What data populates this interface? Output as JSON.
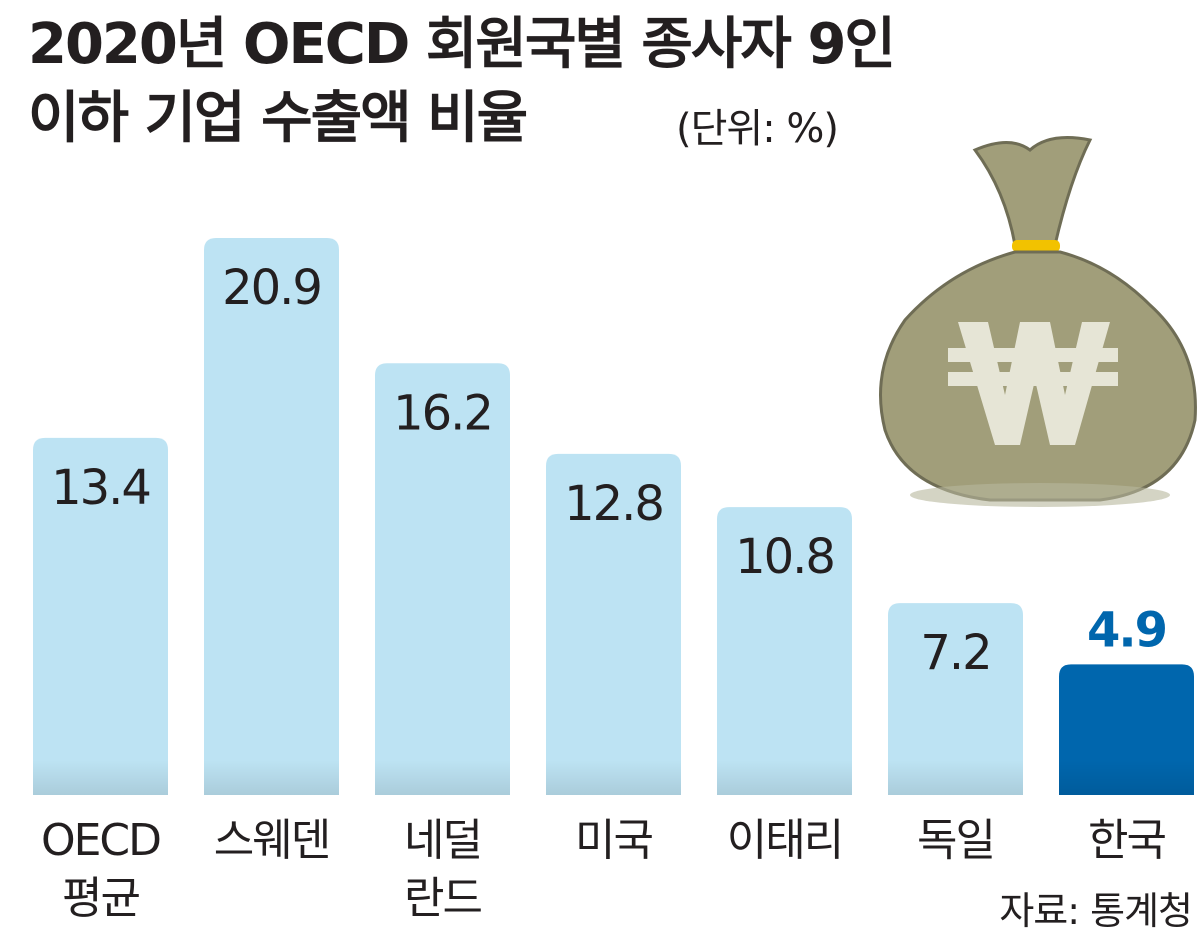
{
  "chart_data": {
    "type": "bar",
    "title": "2020년 OECD 회원국별 종사자 9인\n이하 기업 수출액 비율",
    "unit": "(단위: %)",
    "categories": [
      "OECD\n평균",
      "스웨덴",
      "네덜\n란드",
      "미국",
      "이태리",
      "독일",
      "한국"
    ],
    "values": [
      13.4,
      20.9,
      16.2,
      12.8,
      10.8,
      7.2,
      4.9
    ],
    "colors": [
      "#bde3f3",
      "#bde3f3",
      "#bde3f3",
      "#bde3f3",
      "#bde3f3",
      "#bde3f3",
      "#0066ad"
    ],
    "highlight_color": "#0066ad",
    "source": "자료: 통계청"
  }
}
